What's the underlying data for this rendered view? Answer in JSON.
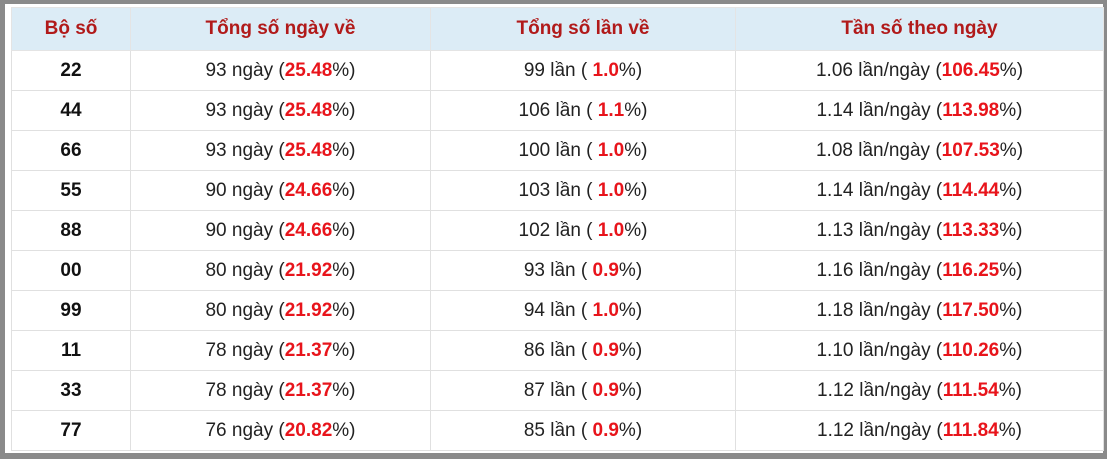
{
  "table": {
    "header": [
      "Bộ số",
      "Tổng số ngày về",
      "Tổng số lần về",
      "Tần số theo ngày"
    ],
    "rows": [
      [
        "22",
        [
          "93 ngày (",
          "25.48",
          "%)"
        ],
        [
          "99 lần ( ",
          "1.0",
          "%)"
        ],
        [
          "1.06 lần/ngày (",
          "106.45",
          "%)"
        ]
      ],
      [
        "44",
        [
          "93 ngày (",
          "25.48",
          "%)"
        ],
        [
          "106 lần ( ",
          "1.1",
          "%)"
        ],
        [
          "1.14 lần/ngày (",
          "113.98",
          "%)"
        ]
      ],
      [
        "66",
        [
          "93 ngày (",
          "25.48",
          "%)"
        ],
        [
          "100 lần ( ",
          "1.0",
          "%)"
        ],
        [
          "1.08 lần/ngày (",
          "107.53",
          "%)"
        ]
      ],
      [
        "55",
        [
          "90 ngày (",
          "24.66",
          "%)"
        ],
        [
          "103 lần ( ",
          "1.0",
          "%)"
        ],
        [
          "1.14 lần/ngày (",
          "114.44",
          "%)"
        ]
      ],
      [
        "88",
        [
          "90 ngày (",
          "24.66",
          "%)"
        ],
        [
          "102 lần ( ",
          "1.0",
          "%)"
        ],
        [
          "1.13 lần/ngày (",
          "113.33",
          "%)"
        ]
      ],
      [
        "00",
        [
          "80 ngày (",
          "21.92",
          "%)"
        ],
        [
          "93 lần ( ",
          "0.9",
          "%)"
        ],
        [
          "1.16 lần/ngày (",
          "116.25",
          "%)"
        ]
      ],
      [
        "99",
        [
          "80 ngày (",
          "21.92",
          "%)"
        ],
        [
          "94 lần ( ",
          "1.0",
          "%)"
        ],
        [
          "1.18 lần/ngày (",
          "117.50",
          "%)"
        ]
      ],
      [
        "11",
        [
          "78 ngày (",
          "21.37",
          "%)"
        ],
        [
          "86 lần ( ",
          "0.9",
          "%)"
        ],
        [
          "1.10 lần/ngày (",
          "110.26",
          "%)"
        ]
      ],
      [
        "33",
        [
          "78 ngày (",
          "21.37",
          "%)"
        ],
        [
          "87 lần ( ",
          "0.9",
          "%)"
        ],
        [
          "1.12 lần/ngày (",
          "111.54",
          "%)"
        ]
      ],
      [
        "77",
        [
          "76 ngày (",
          "20.82",
          "%)"
        ],
        [
          "85 lần ( ",
          "0.9",
          "%)"
        ],
        [
          "1.12 lần/ngày (",
          "111.84",
          "%)"
        ]
      ]
    ]
  }
}
